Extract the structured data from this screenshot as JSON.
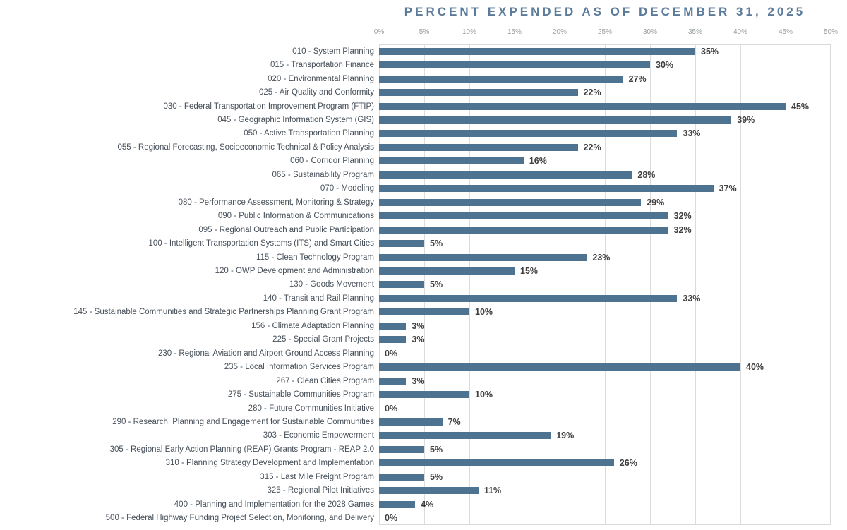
{
  "chart_data": {
    "type": "bar",
    "orientation": "horizontal",
    "title": "PERCENT EXPENDED AS OF DECEMBER 31, 2025",
    "categories": [
      "010 - System Planning",
      "015 - Transportation Finance",
      "020 - Environmental Planning",
      "025 - Air Quality and Conformity",
      "030 - Federal Transportation Improvement Program (FTIP)",
      "045 - Geographic Information System (GIS)",
      "050 - Active Transportation Planning",
      "055 - Regional Forecasting, Socioeconomic Technical & Policy Analysis",
      "060 - Corridor Planning",
      "065 - Sustainability Program",
      "070 - Modeling",
      "080 - Performance Assessment, Monitoring & Strategy",
      "090 - Public Information & Communications",
      "095 - Regional Outreach and Public Participation",
      "100 - Intelligent Transportation Systems (ITS) and Smart Cities",
      "115 - Clean Technology Program",
      "120 - OWP Development and Administration",
      "130 - Goods Movement",
      "140 - Transit and Rail Planning",
      "145 - Sustainable Communities and Strategic Partnerships Planning Grant Program",
      "156 - Climate Adaptation Planning",
      "225 - Special Grant Projects",
      "230 - Regional Aviation and Airport Ground Access Planning",
      "235 - Local Information Services Program",
      "267 - Clean Cities Program",
      "275 - Sustainable Communities Program",
      "280 - Future Communities Initiative",
      "290 - Research, Planning and Engagement for Sustainable Communities",
      "303 - Economic Empowerment",
      "305 - Regional Early Action Planning (REAP) Grants Program - REAP 2.0",
      "310 - Planning Strategy Development and Implementation",
      "315 - Last Mile Freight Program",
      "325 - Regional Pilot Initiatives",
      "400 - Planning and Implementation for the 2028 Games",
      "500 - Federal Highway Funding Project Selection, Monitoring, and Delivery"
    ],
    "values": [
      35,
      30,
      27,
      22,
      45,
      39,
      33,
      22,
      16,
      28,
      37,
      29,
      32,
      32,
      5,
      23,
      15,
      5,
      33,
      10,
      3,
      3,
      0,
      40,
      3,
      10,
      0,
      7,
      19,
      5,
      26,
      5,
      11,
      4,
      0
    ],
    "value_labels": [
      "35%",
      "30%",
      "27%",
      "22%",
      "45%",
      "39%",
      "33%",
      "22%",
      "16%",
      "28%",
      "37%",
      "29%",
      "32%",
      "32%",
      "5%",
      "23%",
      "15%",
      "5%",
      "33%",
      "10%",
      "3%",
      "3%",
      "0%",
      "40%",
      "3%",
      "10%",
      "0%",
      "7%",
      "19%",
      "5%",
      "26%",
      "5%",
      "11%",
      "4%",
      "0%"
    ],
    "xlabel": "",
    "ylabel": "",
    "xlim": [
      0,
      50
    ],
    "x_ticks": [
      "0%",
      "5%",
      "10%",
      "15%",
      "20%",
      "25%",
      "30%",
      "35%",
      "40%",
      "45%",
      "50%"
    ],
    "tick_step": 5,
    "grid": "vertical-gridlines-on",
    "legend": "none",
    "bar_color": "#4d7390",
    "title_color": "#5b7b9b",
    "tick_label_color": "#9aa0a4",
    "category_label_color": "#47505a",
    "value_label_color": "#3f3f3f",
    "gridline_color": "#dcdcdc",
    "plot_border_color": "#d9d9d9"
  }
}
